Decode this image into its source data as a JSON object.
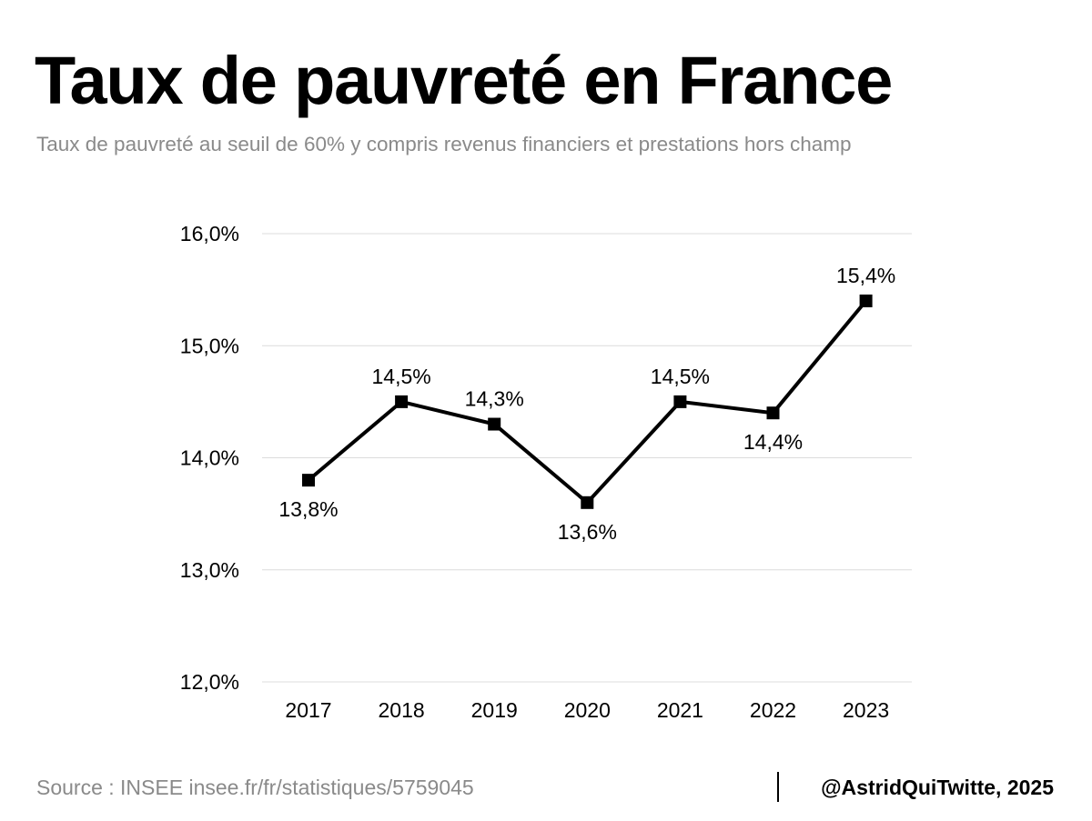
{
  "header": {
    "title": "Taux de pauvreté en France",
    "subtitle": "Taux de pauvreté au seuil de 60% y compris revenus financiers et prestations hors champ"
  },
  "footer": {
    "source": "Source : INSEE insee.fr/fr/statistiques/5759045",
    "credit": "@AstridQuiTwitte, 2025"
  },
  "chart_data": {
    "type": "line",
    "title": "Taux de pauvreté en France",
    "subtitle": "Taux de pauvreté au seuil de 60% y compris revenus financiers et prestations hors champ",
    "xlabel": "",
    "ylabel": "",
    "categories": [
      "2017",
      "2018",
      "2019",
      "2020",
      "2021",
      "2022",
      "2023"
    ],
    "series": [
      {
        "values": [
          13.8,
          14.5,
          14.3,
          13.6,
          14.5,
          14.4,
          15.4
        ],
        "data_labels": [
          "13,8%",
          "14,5%",
          "14,3%",
          "13,6%",
          "14,5%",
          "14,4%",
          "15,4%"
        ],
        "label_positions": [
          "below",
          "above",
          "above",
          "below",
          "above",
          "below",
          "above"
        ]
      }
    ],
    "ylim": [
      12.0,
      16.0
    ],
    "yticks": [
      12.0,
      13.0,
      14.0,
      15.0,
      16.0
    ],
    "ytick_labels": [
      "12,0%",
      "13,0%",
      "14,0%",
      "15,0%",
      "16,0%"
    ],
    "grid": true,
    "legend": "none",
    "line_color": "#000000",
    "marker": "square"
  }
}
